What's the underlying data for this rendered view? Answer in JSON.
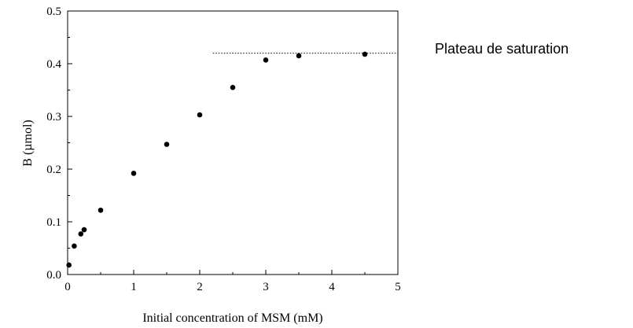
{
  "chart_data": {
    "type": "scatter",
    "title": "",
    "xlabel": "Initial concentration of MSM (mM)",
    "ylabel": "B (µmol)",
    "xlim": [
      0,
      5
    ],
    "ylim": [
      0,
      0.5
    ],
    "xticks": [
      0,
      1,
      2,
      3,
      4,
      5
    ],
    "xtick_labels": [
      "0",
      "1",
      "2",
      "3",
      "4",
      "5"
    ],
    "yticks": [
      0,
      0.1,
      0.2,
      0.3,
      0.4,
      0.5
    ],
    "ytick_labels": [
      "0.0",
      "0.1",
      "0.2",
      "0.3",
      "0.4",
      "0.5"
    ],
    "grid": false,
    "points": [
      {
        "x": 0.02,
        "y": 0.018
      },
      {
        "x": 0.1,
        "y": 0.054
      },
      {
        "x": 0.2,
        "y": 0.077
      },
      {
        "x": 0.25,
        "y": 0.085
      },
      {
        "x": 0.5,
        "y": 0.122
      },
      {
        "x": 1.0,
        "y": 0.192
      },
      {
        "x": 1.5,
        "y": 0.247
      },
      {
        "x": 2.0,
        "y": 0.303
      },
      {
        "x": 2.5,
        "y": 0.355
      },
      {
        "x": 3.0,
        "y": 0.407
      },
      {
        "x": 3.5,
        "y": 0.415
      },
      {
        "x": 4.5,
        "y": 0.418
      }
    ],
    "reference_line": {
      "y": 0.42,
      "x_start": 2.2,
      "x_end": 5.0,
      "style": "dotted"
    },
    "annotation": "Plateau de saturation"
  }
}
